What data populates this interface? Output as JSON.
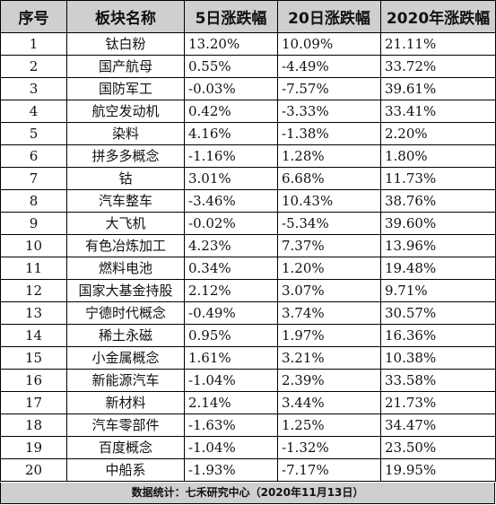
{
  "table": {
    "headers": [
      "序号",
      "板块名称",
      "5日涨跌幅",
      "20日涨跌幅",
      "2020年涨跌幅"
    ],
    "rows": [
      [
        "1",
        "钛白粉",
        "13.20%",
        "10.09%",
        "21.11%"
      ],
      [
        "2",
        "国产航母",
        "0.55%",
        "-4.49%",
        "33.72%"
      ],
      [
        "3",
        "国防军工",
        "-0.03%",
        "-7.57%",
        "39.61%"
      ],
      [
        "4",
        "航空发动机",
        "0.42%",
        "-3.33%",
        "33.41%"
      ],
      [
        "5",
        "染料",
        "4.16%",
        "-1.38%",
        "2.20%"
      ],
      [
        "6",
        "拼多多概念",
        "-1.16%",
        "1.28%",
        "1.80%"
      ],
      [
        "7",
        "钴",
        "3.01%",
        "6.68%",
        "11.73%"
      ],
      [
        "8",
        "汽车整车",
        "-3.46%",
        "10.43%",
        "38.76%"
      ],
      [
        "9",
        "大飞机",
        "-0.02%",
        "-5.34%",
        "39.60%"
      ],
      [
        "10",
        "有色冶炼加工",
        "4.23%",
        "7.37%",
        "13.96%"
      ],
      [
        "11",
        "燃料电池",
        "0.34%",
        "1.20%",
        "19.48%"
      ],
      [
        "12",
        "国家大基金持股",
        "2.12%",
        "3.07%",
        "9.71%"
      ],
      [
        "13",
        "宁德时代概念",
        "-0.49%",
        "3.74%",
        "30.57%"
      ],
      [
        "14",
        "稀土永磁",
        "0.95%",
        "1.97%",
        "16.36%"
      ],
      [
        "15",
        "小金属概念",
        "1.61%",
        "3.21%",
        "10.38%"
      ],
      [
        "16",
        "新能源汽车",
        "-1.04%",
        "2.39%",
        "33.58%"
      ],
      [
        "17",
        "新材料",
        "2.14%",
        "3.44%",
        "21.73%"
      ],
      [
        "18",
        "汽车零部件",
        "-1.63%",
        "1.25%",
        "34.47%"
      ],
      [
        "19",
        "百度概念",
        "-1.04%",
        "-1.32%",
        "23.50%"
      ],
      [
        "20",
        "中船系",
        "-1.93%",
        "-7.17%",
        "19.95%"
      ]
    ]
  },
  "footer": "数据统计：七禾研究中心（2020年11月13日）",
  "colors": {
    "header_bg": "#cfcfcf",
    "footer_bg": "#cfcfcf",
    "border": "#000000",
    "text": "#111111"
  }
}
